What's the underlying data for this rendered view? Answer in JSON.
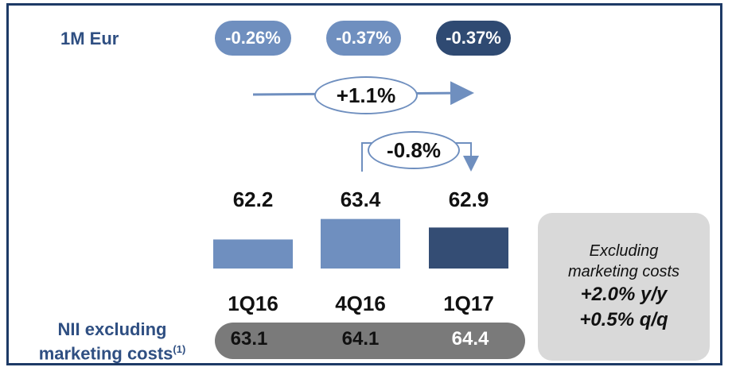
{
  "chart_data": {
    "type": "bar",
    "categories": [
      "1Q16",
      "4Q16",
      "1Q17"
    ],
    "values": [
      62.2,
      63.4,
      62.9
    ],
    "bar_colors": [
      "#6f8fbf",
      "#6f8fbf",
      "#344d74"
    ],
    "ylim": [
      60.5,
      64
    ],
    "data_labels": [
      "62.2",
      "63.4",
      "62.9"
    ]
  },
  "rate": {
    "label": "1M Eur",
    "values": [
      "-0.26%",
      "-0.37%",
      "-0.37%"
    ]
  },
  "changes": {
    "yoy": "+1.1%",
    "qoq": "-0.8%"
  },
  "nii": {
    "label_line1": "NII excluding",
    "label_line2": "marketing costs",
    "footnote": "(1)",
    "values": [
      "63.1",
      "64.1",
      "64.4"
    ]
  },
  "callout": {
    "line1": "Excluding",
    "line2": "marketing costs",
    "yoy": "+2.0% y/y",
    "qoq": "+0.5% q/q"
  },
  "colors": {
    "frame": "#1d3a66",
    "light_blue": "#6f8fbf",
    "dark_blue": "#2f4a72",
    "grey": "#7a7a7a"
  }
}
